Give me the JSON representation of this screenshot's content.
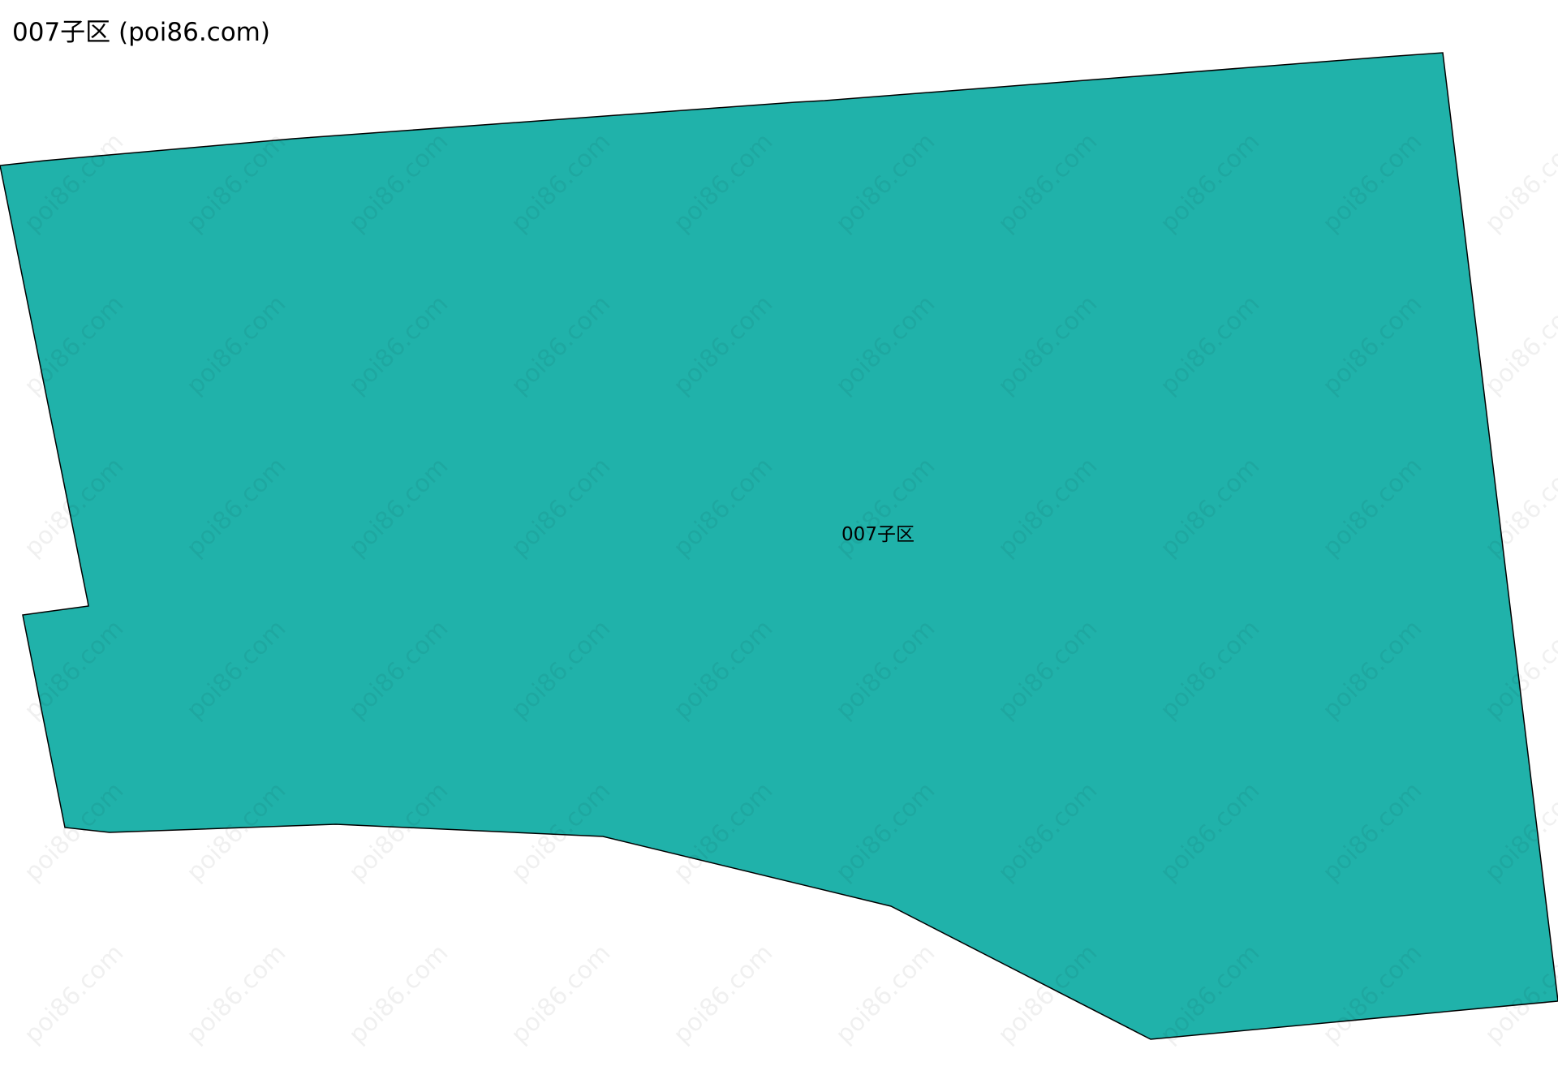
{
  "title": "007子区 (poi86.com)",
  "region": {
    "label": "007子区",
    "fill_color": "#20b2aa",
    "stroke_color": "#000000"
  },
  "watermark": "poi86.com"
}
